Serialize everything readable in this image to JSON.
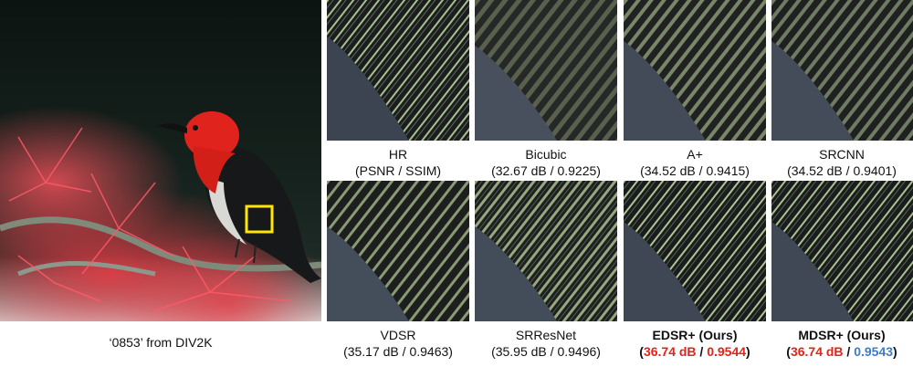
{
  "main_image": {
    "caption": "‘0853’ from DIV2K",
    "highlight_color": "#ffe500"
  },
  "panels": [
    {
      "name": "HR",
      "metrics": "(PSNR / SSIM)"
    },
    {
      "name": "Bicubic",
      "metrics": "(32.67 dB / 0.9225)"
    },
    {
      "name": "A+",
      "metrics": "(34.52 dB / 0.9415)"
    },
    {
      "name": "SRCNN",
      "metrics": "(34.52 dB / 0.9401)"
    },
    {
      "name": "VDSR",
      "metrics": "(35.17 dB / 0.9463)"
    },
    {
      "name": "SRResNet",
      "metrics": "(35.95 dB / 0.9496)"
    },
    {
      "name": "EDSR+ (Ours)",
      "metrics_open": "(",
      "psnr": "36.74 dB",
      "sep": " / ",
      "ssim": "0.9544",
      "metrics_close": ")"
    },
    {
      "name": "MDSR+ (Ours)",
      "metrics_open": "(",
      "psnr": "36.74 dB",
      "sep": " / ",
      "ssim": "0.9543",
      "metrics_close": ")"
    }
  ],
  "colors": {
    "best": "#e2231a",
    "second_best": "#3d7cc9"
  }
}
